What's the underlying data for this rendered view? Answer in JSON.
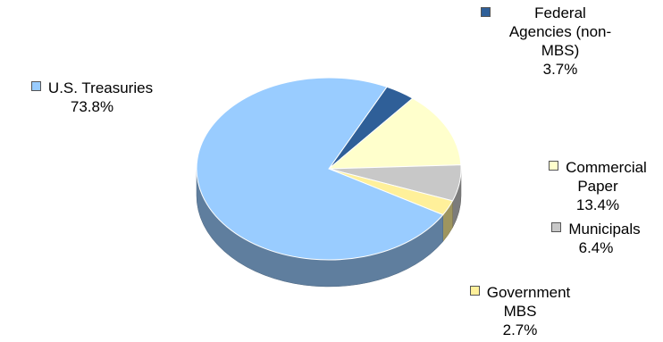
{
  "chart_data": {
    "type": "pie",
    "style": "3d",
    "slices": [
      {
        "label": "Federal Agencies (non-MBS)",
        "value": 3.7,
        "value_label": "3.7%",
        "color": "#2f5f98"
      },
      {
        "label": "Commercial Paper",
        "value": 13.4,
        "value_label": "13.4%",
        "color": "#ffffcc"
      },
      {
        "label": "Municipals",
        "value": 6.4,
        "value_label": "6.4%",
        "color": "#c8c8c8"
      },
      {
        "label": "Government MBS",
        "value": 2.7,
        "value_label": "2.7%",
        "color": "#fff09a"
      },
      {
        "label": "U.S. Treasuries",
        "value": 73.8,
        "value_label": "73.8%",
        "color": "#99ccff"
      }
    ],
    "labels": [
      {
        "lines": [
          "U.S. Treasuries",
          "73.8%"
        ],
        "swatch": "#99ccff"
      },
      {
        "lines": [
          "Federal",
          "Agencies (non-",
          "MBS)",
          "3.7%"
        ],
        "swatch": "#2f5f98"
      },
      {
        "lines": [
          "Commercial",
          "Paper",
          "13.4%"
        ],
        "swatch": "#ffffcc"
      },
      {
        "lines": [
          "Municipals",
          "6.4%"
        ],
        "swatch": "#c8c8c8"
      },
      {
        "lines": [
          "Government",
          "MBS",
          "2.7%"
        ],
        "swatch": "#fff09a"
      }
    ]
  }
}
